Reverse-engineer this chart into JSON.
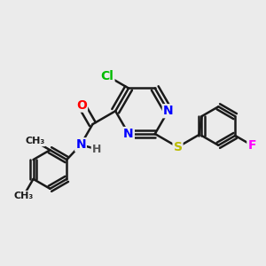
{
  "background_color": "#ebebeb",
  "bond_color": "#1a1a1a",
  "bond_width": 1.8,
  "atom_colors": {
    "N": "#0000ff",
    "O": "#ff0000",
    "S": "#bbbb00",
    "Cl": "#00bb00",
    "F": "#ff00ff",
    "C": "#1a1a1a",
    "H": "#555555"
  },
  "font_size": 10,
  "fig_size": [
    3.0,
    3.0
  ],
  "dpi": 100
}
